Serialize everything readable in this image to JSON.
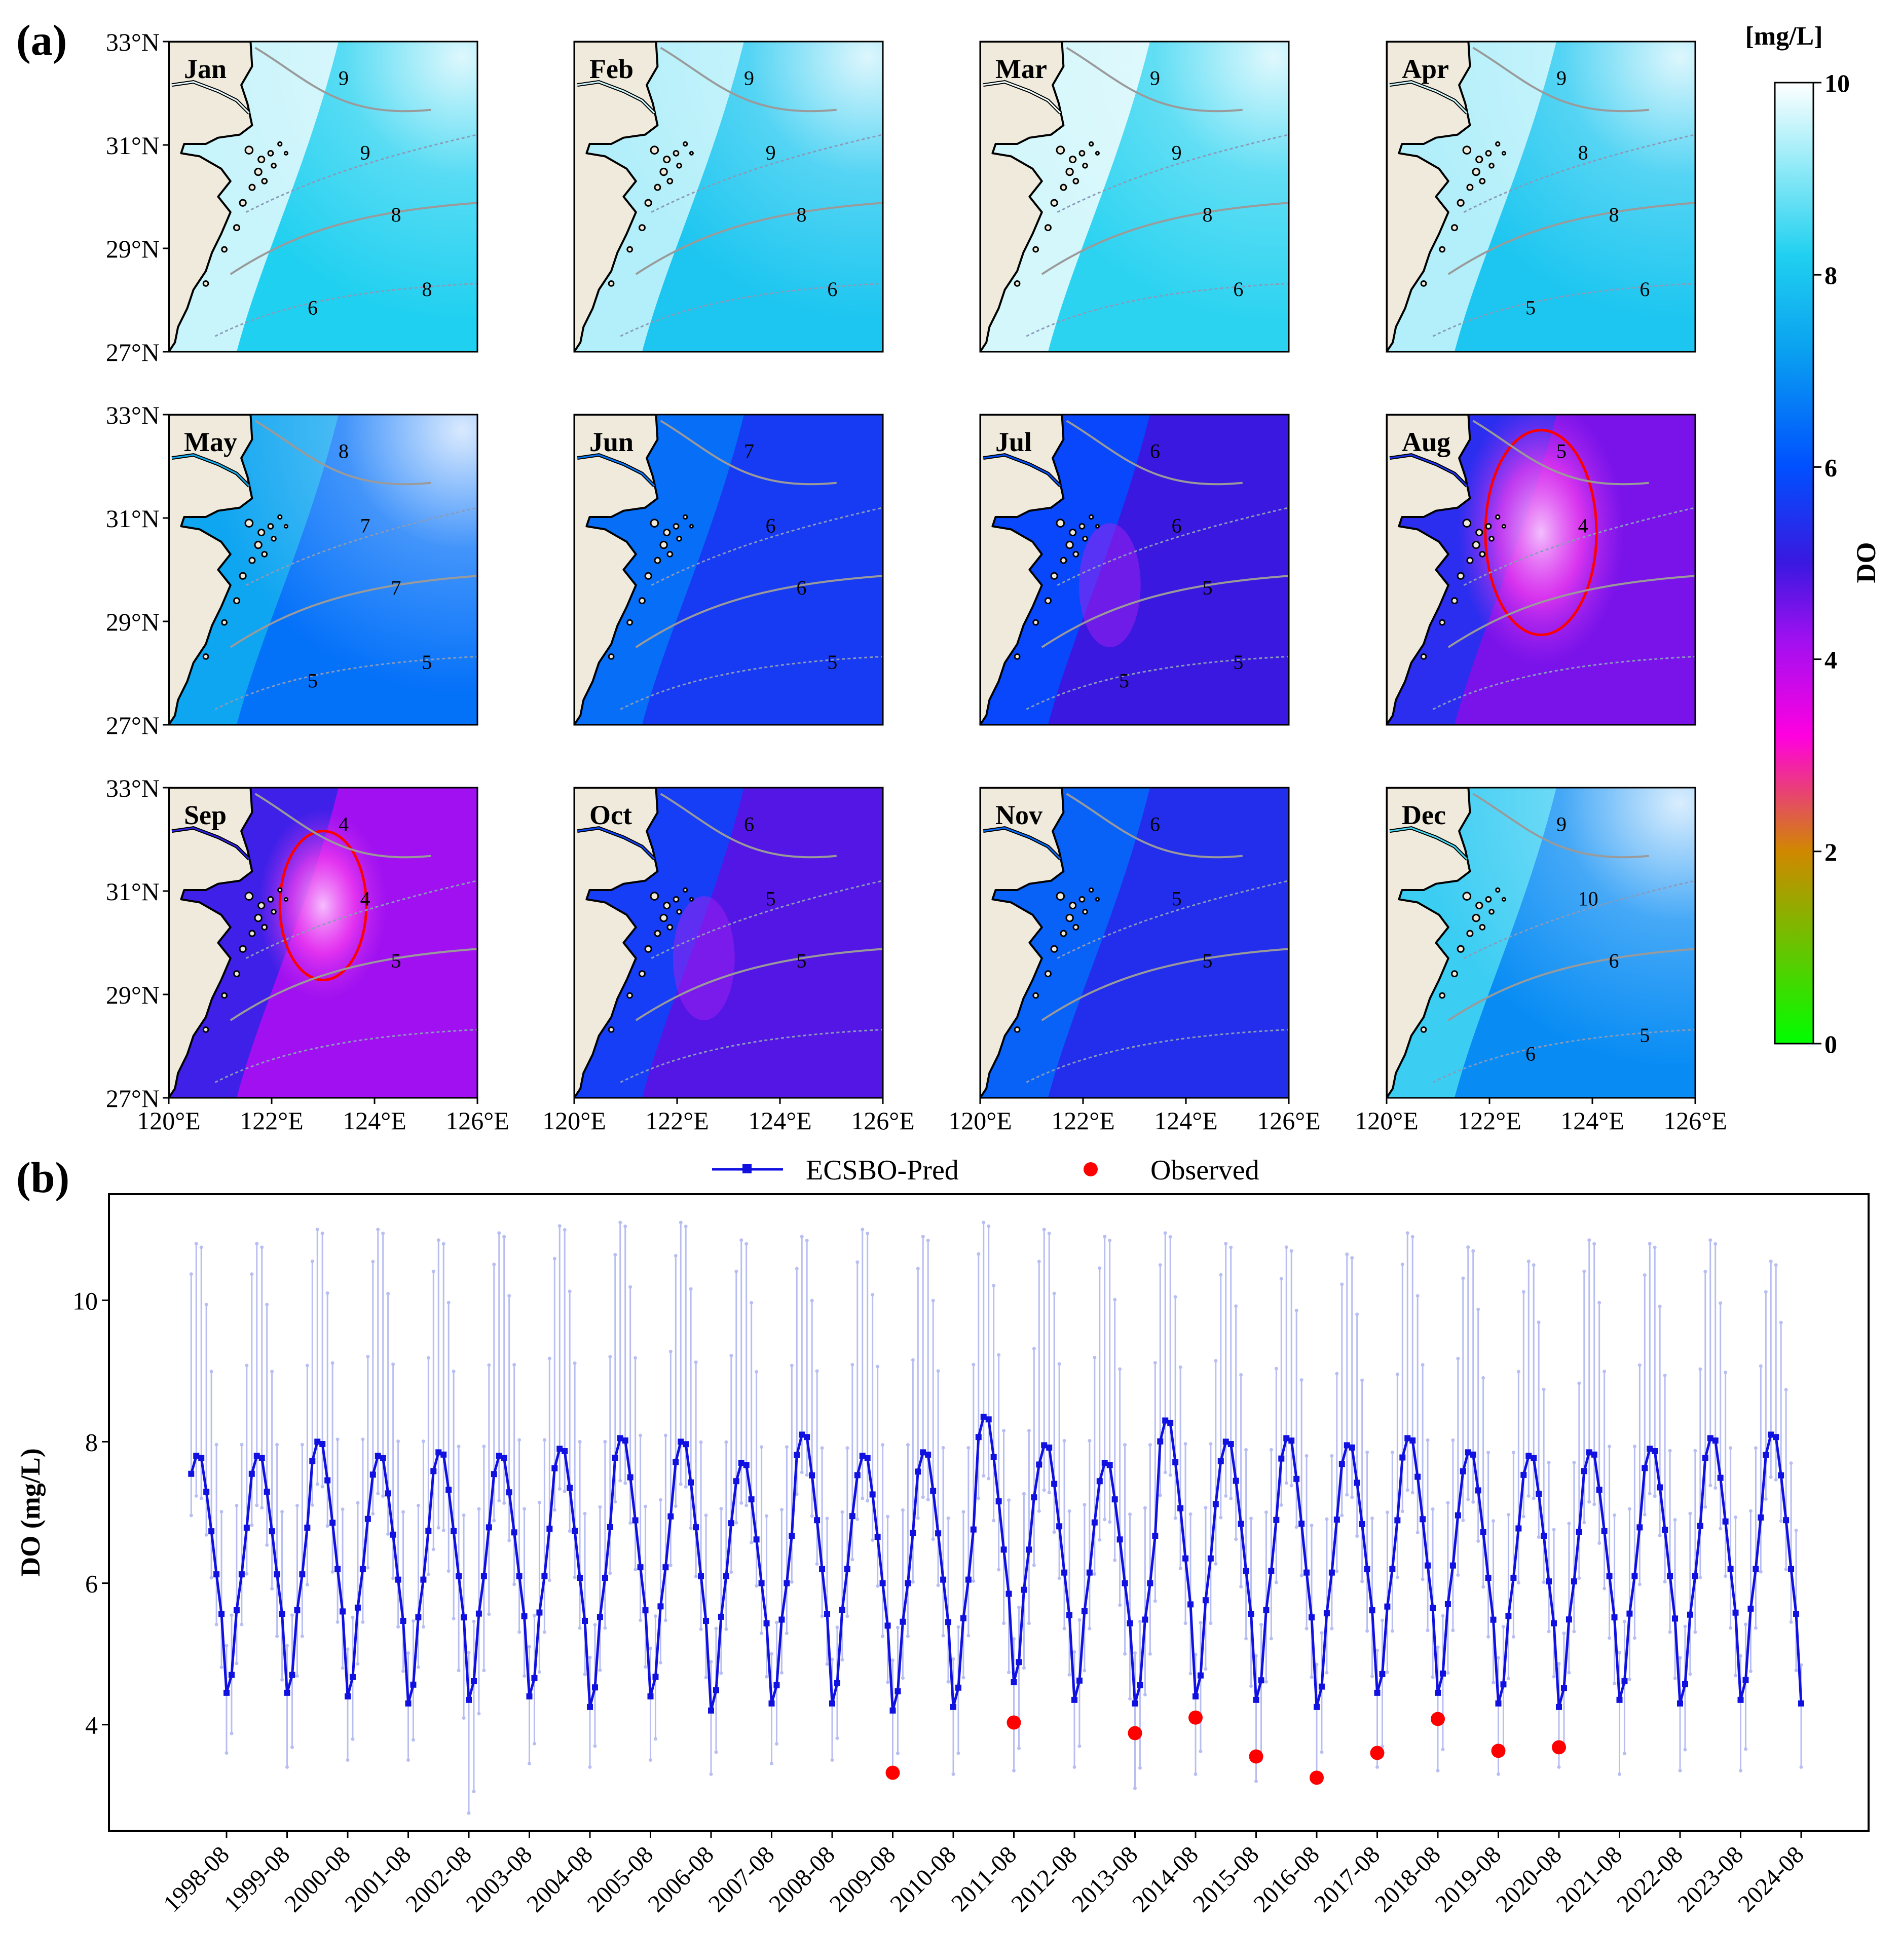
{
  "panel_a_label": "(a)",
  "panel_b_label": "(b)",
  "chart_data": [
    {
      "type": "heatmap",
      "panel": "(a)",
      "description_months": [
        "Jan",
        "Feb",
        "Mar",
        "Apr",
        "May",
        "Jun",
        "Jul",
        "Aug",
        "Sep",
        "Oct",
        "Nov",
        "Dec"
      ],
      "lat_ticks": [
        "33°N",
        "31°N",
        "29°N",
        "27°N"
      ],
      "lon_ticks": [
        "120°E",
        "122°E",
        "124°E",
        "126°E"
      ],
      "lat_range": [
        27,
        33
      ],
      "lon_range": [
        120,
        126
      ],
      "colorbar": {
        "unit": "[mg/L]",
        "label": "DO",
        "range": [
          0,
          10
        ],
        "ticks": [
          "0",
          "2",
          "4",
          "6",
          "8",
          "10"
        ],
        "colors": [
          "#00ff00",
          "#d08800",
          "#ff00e0",
          "#3a18e0",
          "#0050ff",
          "#10c8ee",
          "#ffffff"
        ]
      },
      "hypoxia_threshold_color": "#ff0000",
      "monthly_offshore_do": [
        8.2,
        8.0,
        8.3,
        8.0,
        6.5,
        5.6,
        5.0,
        4.5,
        4.2,
        4.8,
        5.4,
        6.9
      ],
      "contour_labels": {
        "Jan": [
          "9",
          "9",
          "8",
          "8",
          "6"
        ],
        "Feb": [
          "9",
          "9",
          "8",
          "6"
        ],
        "Mar": [
          "9",
          "9",
          "8",
          "6"
        ],
        "Apr": [
          "9",
          "8",
          "8",
          "6",
          "5"
        ],
        "May": [
          "8",
          "7",
          "7",
          "5",
          "5"
        ],
        "Jun": [
          "7",
          "6",
          "6",
          "5"
        ],
        "Jul": [
          "6",
          "6",
          "5",
          "5",
          "5"
        ],
        "Aug": [
          "5",
          "4"
        ],
        "Sep": [
          "4",
          "4",
          "5"
        ],
        "Oct": [
          "6",
          "5",
          "5"
        ],
        "Nov": [
          "6",
          "5",
          "5"
        ],
        "Dec": [
          "9",
          "10",
          "6",
          "5",
          "6"
        ]
      }
    },
    {
      "type": "line",
      "panel": "(b)",
      "ylabel": "DO (mg/L)",
      "ylim": [
        2.5,
        11.5
      ],
      "yticks": [
        4,
        6,
        8,
        10
      ],
      "x_tick_labels": [
        "1998-08",
        "1999-08",
        "2000-08",
        "2001-08",
        "2002-08",
        "2003-08",
        "2004-08",
        "2005-08",
        "2006-08",
        "2007-08",
        "2008-08",
        "2009-08",
        "2010-08",
        "2011-08",
        "2012-08",
        "2013-08",
        "2014-08",
        "2015-08",
        "2016-08",
        "2017-08",
        "2018-08",
        "2019-08",
        "2020-08",
        "2021-08",
        "2022-08",
        "2023-08",
        "2024-08"
      ],
      "x_start": "1998-01",
      "legend": {
        "pred": "ECSBO-Pred",
        "obs": "Observed"
      },
      "series_style": {
        "pred_color": "#1010e0",
        "range_color": "#b8bef2",
        "obs_color": "#ff0000"
      },
      "monthly_pattern": [
        7.5,
        7.75,
        7.72,
        7.25,
        6.7,
        6.1,
        5.55,
        4.45,
        4.7,
        5.6,
        6.1,
        6.75
      ],
      "annual_peak": [
        7.8,
        7.8,
        8.0,
        7.8,
        7.85,
        7.8,
        7.9,
        8.05,
        8.0,
        7.7,
        8.1,
        7.8,
        7.85,
        8.35,
        7.95,
        7.7,
        8.3,
        8.0,
        8.05,
        7.95,
        8.05,
        7.85,
        7.8,
        7.85,
        7.9,
        8.05,
        8.1
      ],
      "annual_min": [
        4.45,
        4.45,
        4.4,
        4.3,
        4.35,
        4.4,
        4.25,
        4.4,
        4.2,
        4.3,
        4.3,
        4.2,
        4.25,
        4.6,
        4.35,
        4.3,
        4.4,
        4.35,
        4.25,
        4.45,
        4.45,
        4.3,
        4.25,
        4.35,
        4.3,
        4.35,
        4.3
      ],
      "upper_band_peak": [
        10.8,
        10.8,
        11.0,
        11.0,
        10.85,
        10.95,
        11.05,
        11.1,
        11.1,
        10.85,
        10.9,
        11.0,
        10.9,
        11.1,
        11.0,
        10.9,
        10.95,
        10.8,
        10.75,
        10.65,
        10.95,
        10.75,
        10.55,
        10.85,
        10.8,
        10.85,
        10.55
      ],
      "lower_band_min": [
        3.6,
        3.4,
        3.5,
        3.5,
        2.75,
        3.45,
        3.4,
        3.5,
        3.3,
        3.45,
        3.5,
        3.3,
        3.3,
        3.35,
        3.4,
        3.1,
        3.3,
        3.2,
        3.3,
        3.4,
        3.35,
        3.3,
        3.4,
        3.3,
        3.35,
        3.35,
        3.4
      ],
      "observed": [
        {
          "x": "2009-08",
          "y": 3.32
        },
        {
          "x": "2011-08",
          "y": 4.03
        },
        {
          "x": "2013-08",
          "y": 3.88
        },
        {
          "x": "2014-08",
          "y": 4.1
        },
        {
          "x": "2015-08",
          "y": 3.55
        },
        {
          "x": "2016-08",
          "y": 3.25
        },
        {
          "x": "2017-08",
          "y": 3.6
        },
        {
          "x": "2018-08",
          "y": 4.08
        },
        {
          "x": "2019-08",
          "y": 3.63
        },
        {
          "x": "2020-08",
          "y": 3.68
        }
      ]
    }
  ]
}
